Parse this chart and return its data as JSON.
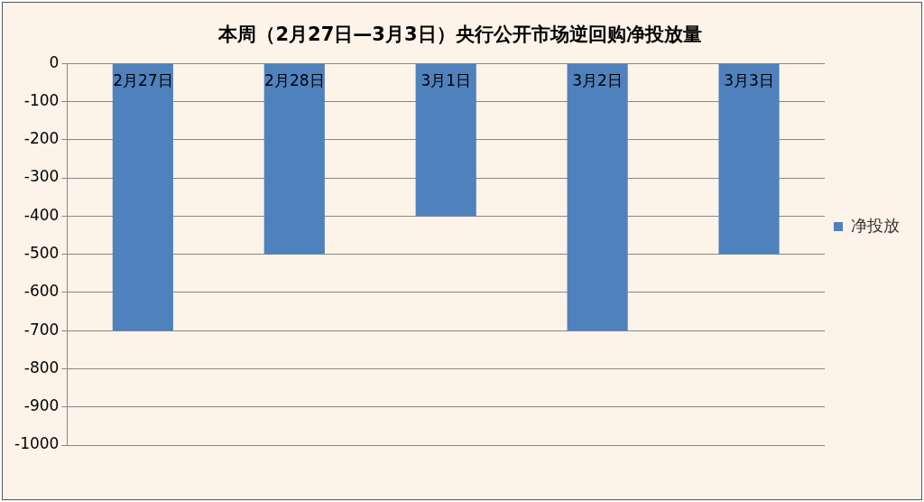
{
  "chart_data": {
    "type": "bar",
    "title": "本周（2月27日—3月3日）央行公开市场逆回购净投放量",
    "categories": [
      "2月27日",
      "2月28日",
      "3月1日",
      "3月2日",
      "3月3日"
    ],
    "series": [
      {
        "name": "净投放",
        "color": "#4f81bd",
        "values": [
          -700,
          -500,
          -400,
          -700,
          -500
        ]
      }
    ],
    "ylim": [
      -1000,
      0
    ],
    "yticks": [
      -1000,
      -900,
      -800,
      -700,
      -600,
      -500,
      -400,
      -300,
      -200,
      -100,
      0
    ],
    "grid": "y",
    "legend": "right"
  }
}
